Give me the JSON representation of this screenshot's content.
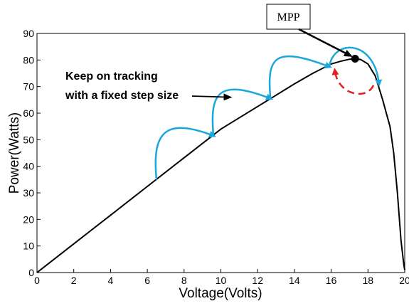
{
  "chart_data": {
    "type": "line",
    "title": "",
    "xlabel": "Voltage(Volts)",
    "ylabel": "Power(Watts)",
    "xlim": [
      0,
      20
    ],
    "ylim": [
      0,
      90
    ],
    "xticks": [
      0,
      2,
      4,
      6,
      8,
      10,
      12,
      14,
      16,
      18,
      20
    ],
    "yticks": [
      0,
      10,
      20,
      30,
      40,
      50,
      60,
      70,
      80,
      90
    ],
    "grid": false,
    "series": [
      {
        "x": [
          0,
          2,
          4,
          6,
          8,
          10,
          12,
          14,
          15,
          16,
          16.5,
          17,
          17.3,
          17.6,
          18,
          18.4,
          18.8,
          19.0,
          19.2,
          19.4,
          19.6,
          19.8,
          19.95,
          20
        ],
        "y": [
          0,
          10.8,
          21.6,
          32.4,
          43.2,
          54,
          62.5,
          71,
          75,
          78.5,
          79.5,
          80.3,
          80.5,
          80.2,
          78.5,
          74,
          65,
          60,
          55,
          45,
          30,
          12,
          3,
          1
        ]
      }
    ],
    "annotations": {
      "mpp_label": "MPP",
      "mpp_point": {
        "x": 17.3,
        "y": 80.5
      },
      "tracking_line1": "Keep on tracking",
      "tracking_line2": "with a fixed step size",
      "tracking_arrow_target": {
        "x": 10.5,
        "y": 66
      },
      "step_arcs": [
        {
          "from": {
            "x": 6.5,
            "y": 35
          },
          "to": {
            "x": 9.6,
            "y": 51.5
          }
        },
        {
          "from": {
            "x": 9.6,
            "y": 51.5
          },
          "to": {
            "x": 12.7,
            "y": 65.5
          }
        },
        {
          "from": {
            "x": 12.7,
            "y": 65.5
          },
          "to": {
            "x": 15.9,
            "y": 77.5
          }
        },
        {
          "from": {
            "x": 15.9,
            "y": 77.5
          },
          "to": {
            "x": 18.6,
            "y": 71
          }
        }
      ],
      "reverse_arc": {
        "from": {
          "x": 18.3,
          "y": 70.5
        },
        "to": {
          "x": 16.2,
          "y": 76
        }
      },
      "colors": {
        "curve": "#000000",
        "step_arrow": "#1ba7d9",
        "reverse_arrow": "#e02020",
        "axes": "#000000"
      }
    }
  }
}
